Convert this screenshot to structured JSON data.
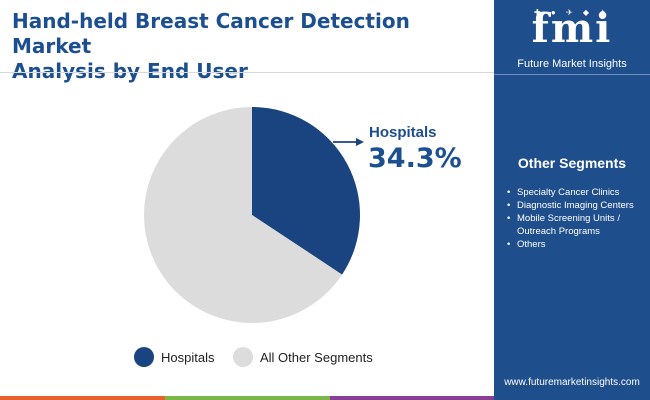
{
  "title_line1": "Hand-held Breast Cancer Detection Market",
  "title_line2": "Analysis by End User",
  "brand": {
    "letters": "fmi",
    "tagline": "Future Market Insights",
    "website": "www.futuremarketinsights.com"
  },
  "colors": {
    "accent": "#1c4f8f",
    "sidebar": "#1f4e8c",
    "hospitals": "#1a4480",
    "other": "#dcdcdc",
    "bottom_bar": [
      "#e8612c",
      "#7ab648",
      "#8a3f97",
      "#1f4e8c"
    ]
  },
  "sidebar": {
    "heading": "Other Segments",
    "items": [
      "Specialty Cancer Clinics",
      "Diagnostic Imaging Centers",
      "Mobile Screening Units / Outreach Programs",
      "Others"
    ]
  },
  "callout": {
    "label": "Hospitals",
    "value": "34.3%"
  },
  "chart_data": {
    "type": "pie",
    "title": "Hand-held Breast Cancer Detection Market Analysis by End User",
    "slices": [
      {
        "label": "Hospitals",
        "value": 34.3,
        "color": "#1a4480"
      },
      {
        "label": "All Other Segments",
        "value": 65.7,
        "color": "#dcdcdc"
      }
    ],
    "start_angle": "12 o'clock, clockwise",
    "legend_position": "bottom"
  }
}
